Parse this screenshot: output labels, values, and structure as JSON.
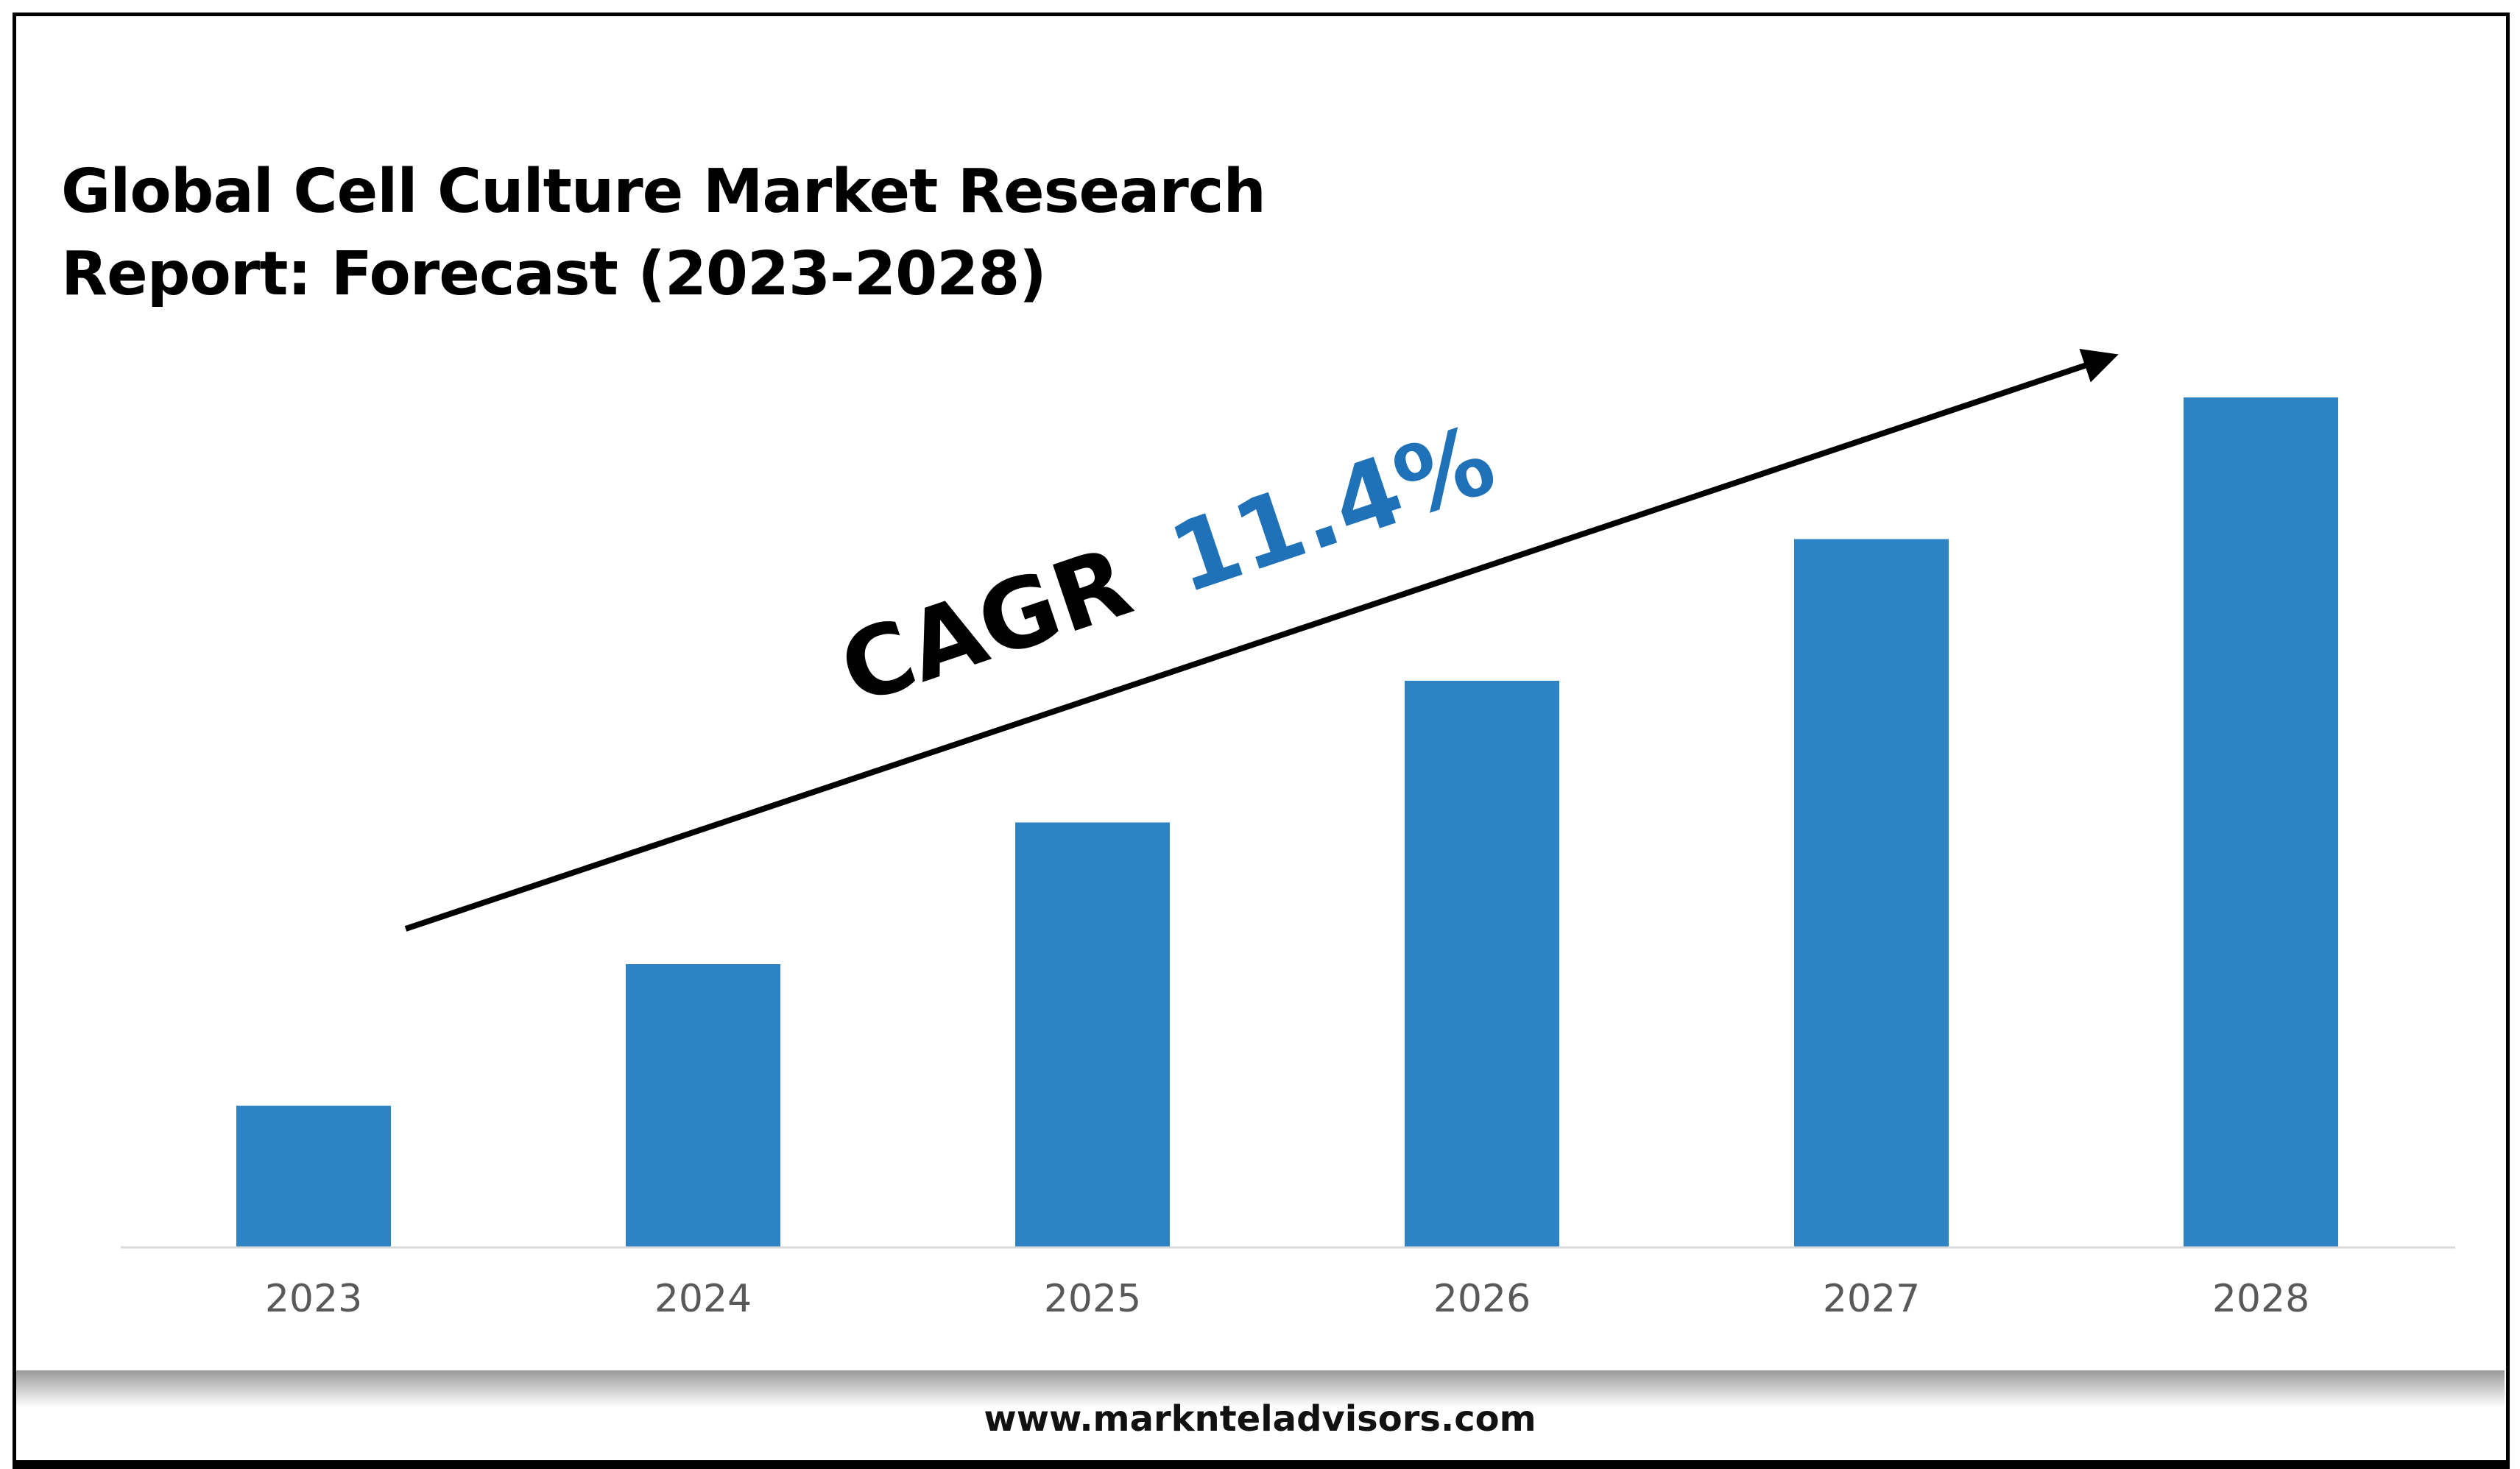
{
  "chart_data": {
    "type": "bar",
    "title": "Global Cell Culture Market Research Report: Forecast (2023-2028)",
    "title_lines": [
      "Global Cell Culture Market Research",
      "Report: Forecast (2023-2028)"
    ],
    "categories": [
      "2023",
      "2024",
      "2025",
      "2026",
      "2027",
      "2028"
    ],
    "values": [
      1,
      2,
      3,
      4,
      5,
      6
    ],
    "value_note": "relative bar heights; no value axis shown",
    "xlabel": "",
    "ylabel": "",
    "ylim": [
      0,
      6.5
    ],
    "grid": false,
    "bar_color": "#2e83c4",
    "annotation": {
      "label": "CAGR",
      "value": "11.4%",
      "value_color": "#1f72b8"
    }
  },
  "footer": {
    "url": "www.marknteladvisors.com"
  }
}
